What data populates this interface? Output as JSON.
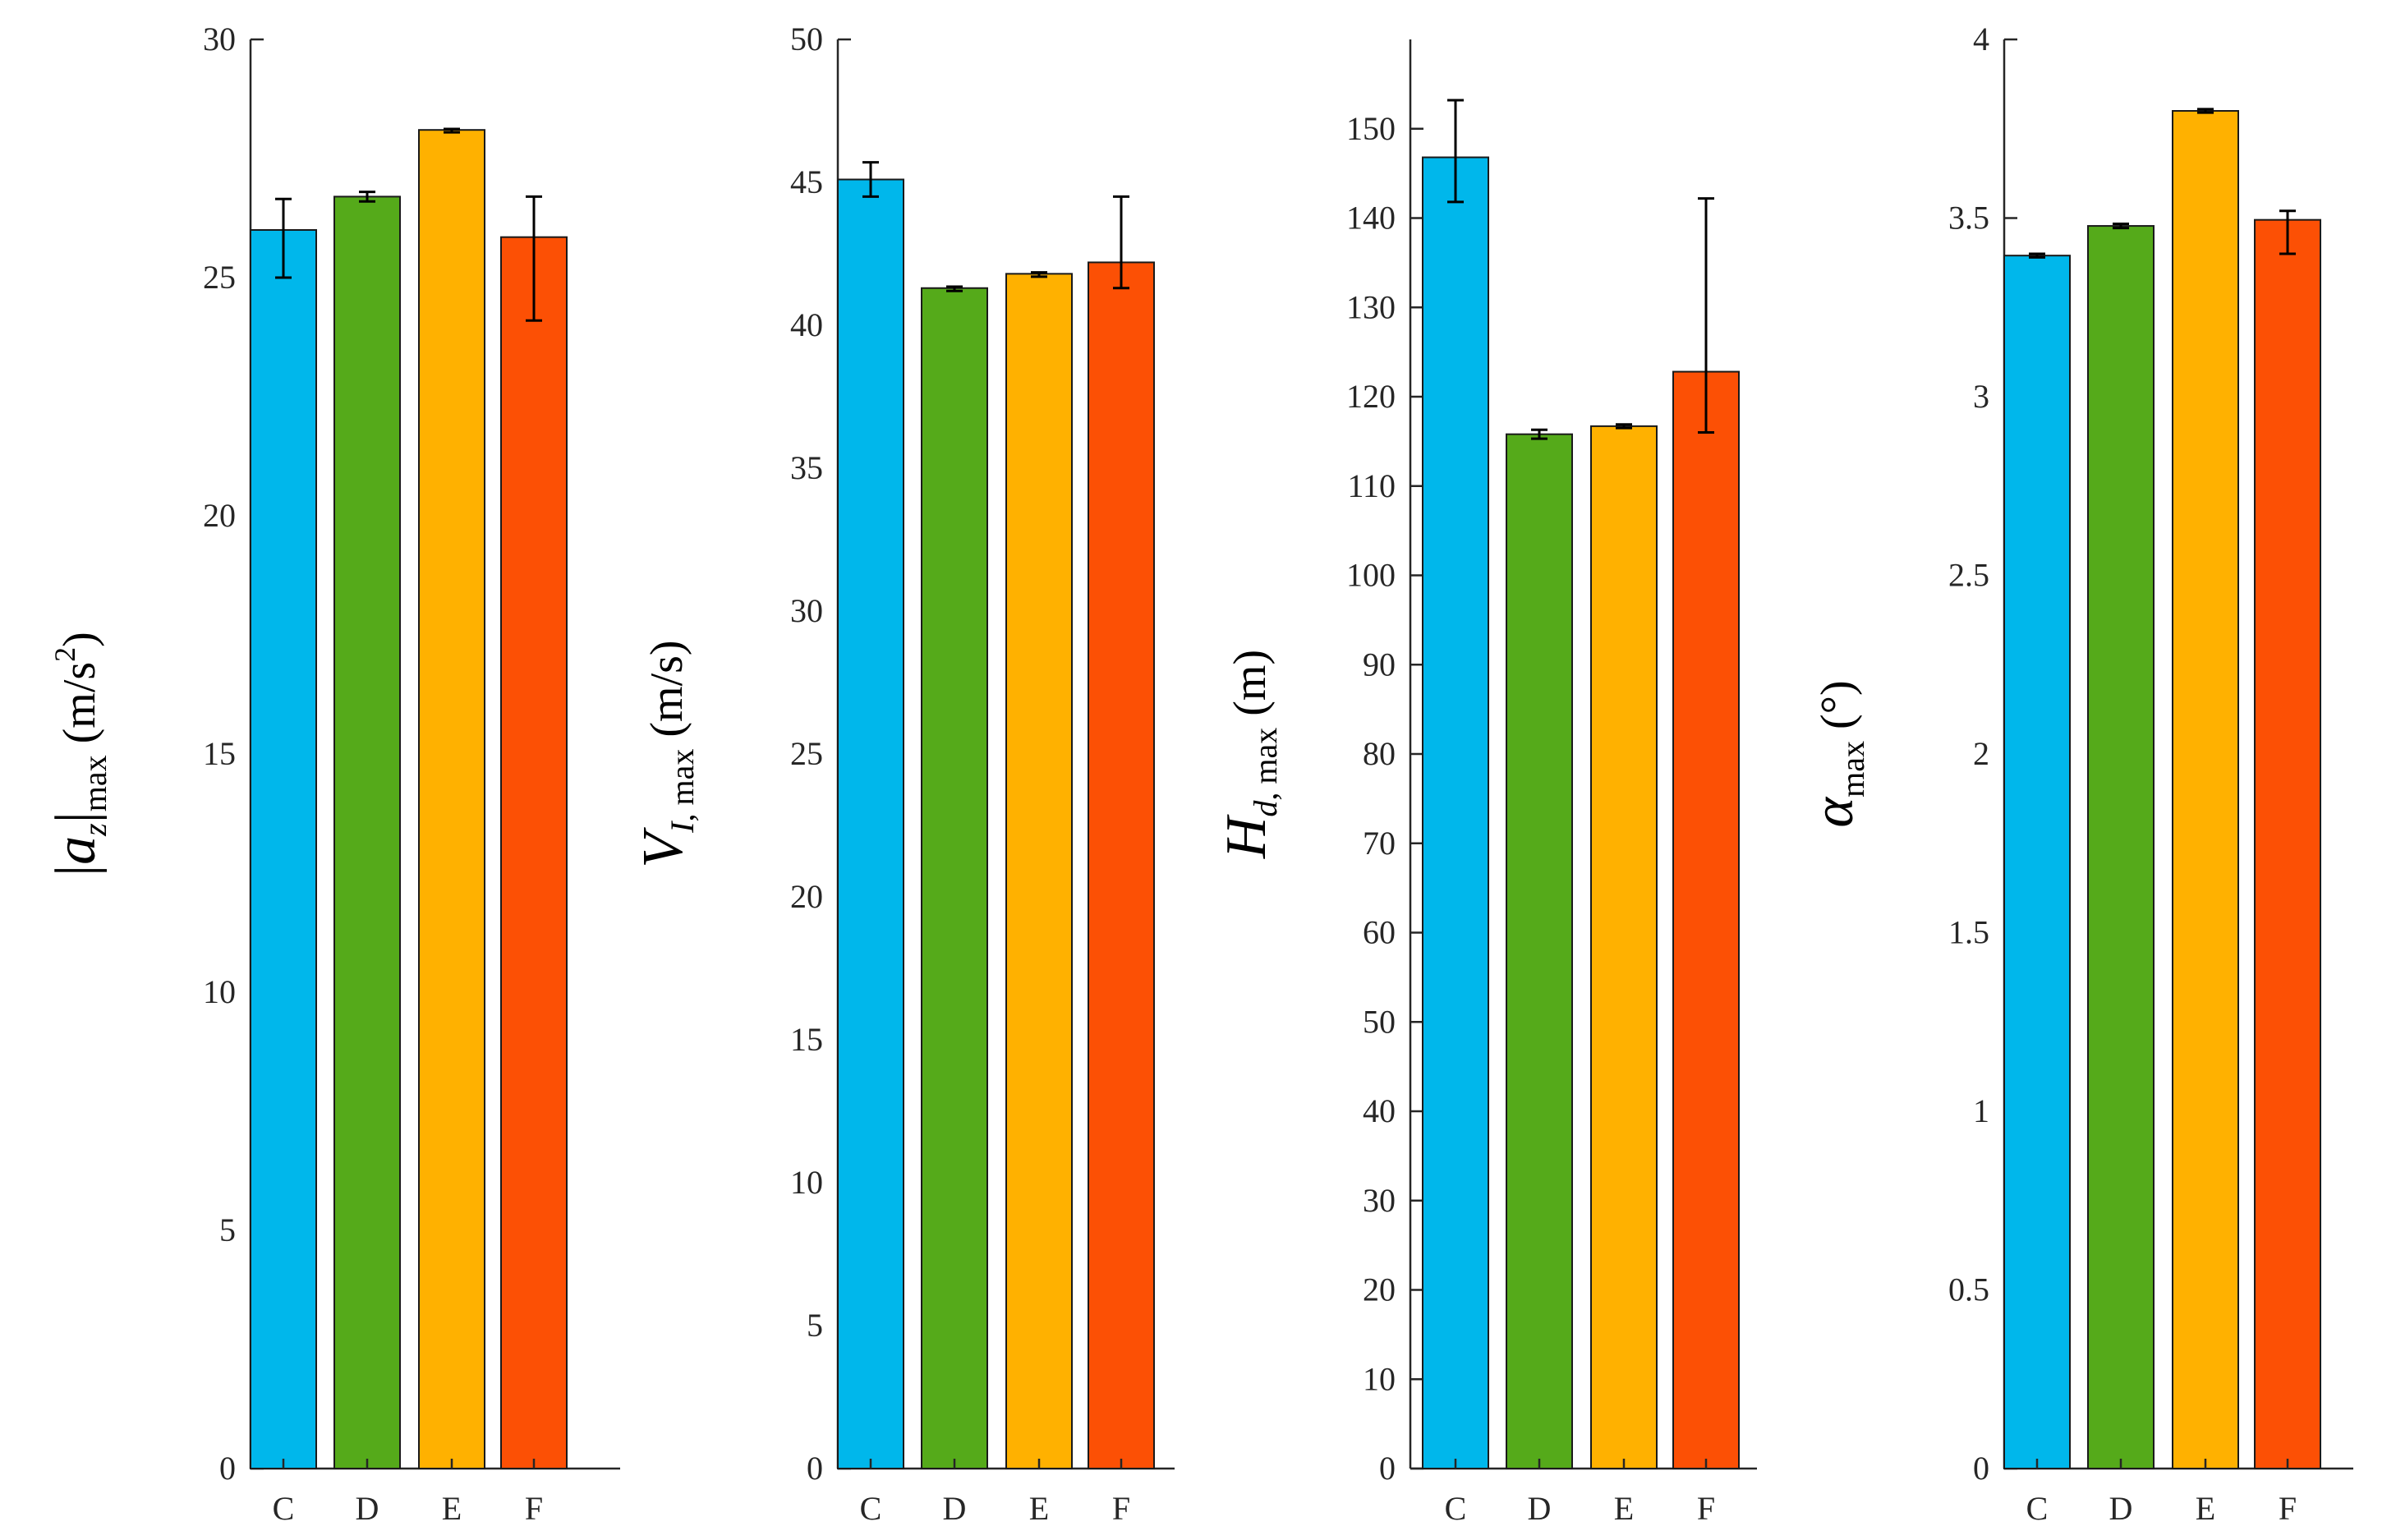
{
  "chart_data": [
    {
      "type": "bar",
      "categories": [
        "C",
        "D",
        "E",
        "F"
      ],
      "values": [
        26.0,
        26.7,
        28.1,
        25.85
      ],
      "error_low": [
        25.0,
        26.6,
        28.05,
        24.1
      ],
      "error_high": [
        26.65,
        26.8,
        28.12,
        26.7
      ],
      "colors": [
        "#00b7eb",
        "#55aa1a",
        "#ffb100",
        "#fc5005"
      ],
      "ylim": [
        0,
        30
      ],
      "yticks": [
        0,
        5,
        10,
        15,
        20,
        25,
        30
      ],
      "ytick_labels": [
        "0",
        "5",
        "10",
        "15",
        "20",
        "25",
        "30"
      ],
      "ylabel": {
        "main": "|a",
        "sub": "z",
        "close": "|",
        "sub2": "max",
        "unit": "(m/s",
        "sup": "2",
        "unit_end": ")"
      },
      "xlabel": "",
      "title": ""
    },
    {
      "type": "bar",
      "categories": [
        "C",
        "D",
        "E",
        "F"
      ],
      "values": [
        45.1,
        41.3,
        41.8,
        42.2
      ],
      "error_low": [
        44.5,
        41.2,
        41.7,
        41.3
      ],
      "error_high": [
        45.7,
        41.35,
        41.85,
        44.5
      ],
      "colors": [
        "#00b7eb",
        "#55aa1a",
        "#ffb100",
        "#fc5005"
      ],
      "ylim": [
        0,
        50
      ],
      "yticks": [
        0,
        5,
        10,
        15,
        20,
        25,
        30,
        35,
        40,
        45,
        50
      ],
      "ytick_labels": [
        "0",
        "5",
        "10",
        "15",
        "20",
        "25",
        "30",
        "35",
        "40",
        "45",
        "50"
      ],
      "ylabel": {
        "main": "V",
        "sub": "I",
        "sub_rest": ", max",
        "unit": "(m/s)"
      },
      "xlabel": "",
      "title": ""
    },
    {
      "type": "bar",
      "categories": [
        "C",
        "D",
        "E",
        "F"
      ],
      "values": [
        146.8,
        115.8,
        116.7,
        122.8
      ],
      "error_low": [
        141.8,
        115.3,
        116.5,
        116.0
      ],
      "error_high": [
        153.2,
        116.3,
        116.9,
        142.2
      ],
      "colors": [
        "#00b7eb",
        "#55aa1a",
        "#ffb100",
        "#fc5005"
      ],
      "ylim": [
        0,
        160
      ],
      "yticks": [
        0,
        10,
        20,
        30,
        40,
        50,
        60,
        70,
        80,
        90,
        100,
        110,
        120,
        130,
        140,
        150
      ],
      "ytick_labels": [
        "0",
        "10",
        "20",
        "30",
        "40",
        "50",
        "60",
        "70",
        "80",
        "90",
        "100",
        "110",
        "120",
        "130",
        "140",
        "150"
      ],
      "ylabel": {
        "main": "H",
        "sub": "d",
        "sub_rest": ", max",
        "unit": "(m)"
      },
      "xlabel": "",
      "title": ""
    },
    {
      "type": "bar",
      "categories": [
        "C",
        "D",
        "E",
        "F"
      ],
      "values": [
        3.395,
        3.478,
        3.8,
        3.495
      ],
      "error_low": [
        3.39,
        3.472,
        3.795,
        3.4
      ],
      "error_high": [
        3.4,
        3.484,
        3.805,
        3.52
      ],
      "colors": [
        "#00b7eb",
        "#55aa1a",
        "#ffb100",
        "#fc5005"
      ],
      "ylim": [
        0,
        4
      ],
      "yticks": [
        0,
        0.5,
        1,
        1.5,
        2,
        2.5,
        3,
        3.5,
        4
      ],
      "ytick_labels": [
        "0",
        "0.5",
        "1",
        "1.5",
        "2",
        "2.5",
        "3",
        "3.5",
        "4"
      ],
      "ylabel": {
        "main": "α",
        "sub": "max",
        "unit": "(°)"
      },
      "xlabel": "",
      "title": ""
    }
  ]
}
